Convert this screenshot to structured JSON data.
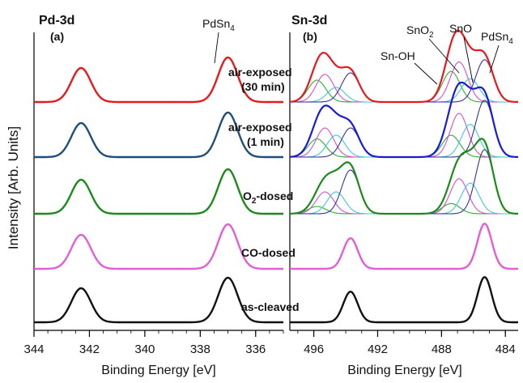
{
  "figure": {
    "y_axis_label": "Intensity [Arb. Units]"
  },
  "panels": [
    {
      "id": "a",
      "title": "Pd-3d",
      "sublabel": "(a)",
      "xlabel": "Binding Energy [eV]",
      "xlim": [
        344,
        335
      ],
      "major_ticks": [
        344,
        342,
        340,
        338,
        336
      ],
      "peak_annotations": [
        "PdSn4"
      ],
      "spectra_top_to_bottom": [
        "air-exposed (30 min)",
        "air-exposed (1 min)",
        "O2-dosed",
        "CO-dosed",
        "as-cleaved"
      ]
    },
    {
      "id": "b",
      "title": "Sn-3d",
      "sublabel": "(b)",
      "xlabel": "Binding Energy [eV]",
      "xlim": [
        497.5,
        483.2
      ],
      "major_ticks": [
        496,
        492,
        488,
        484
      ],
      "peak_annotations": [
        "Sn-OH",
        "SnO2",
        "SnO",
        "PdSn4"
      ]
    }
  ],
  "spectrum_labels": [
    {
      "line1": "air-exposed",
      "line2": "(30 min)"
    },
    {
      "line1": "air-exposed",
      "line2": "(1 min)"
    },
    {
      "line1": "O",
      "sub": "2",
      "line2": "-dosed"
    },
    {
      "line1": "CO-dosed",
      "line2": ""
    },
    {
      "line1": "as-cleaved",
      "line2": ""
    }
  ],
  "chart_data": [
    {
      "type": "line",
      "panel": "a",
      "title": "Pd-3d",
      "xlabel": "Binding Energy [eV]",
      "ylabel": "Intensity [Arb. Units]",
      "xlim": [
        344,
        335
      ],
      "peaks_eV": [
        342.3,
        337.0
      ],
      "series": [
        {
          "name": "air-exposed (30 min)",
          "color": "#e41a1c",
          "peak_heights": [
            0.42,
            0.55
          ]
        },
        {
          "name": "air-exposed (1 min)",
          "color": "#1f4e79",
          "peak_heights": [
            0.42,
            0.55
          ]
        },
        {
          "name": "O2-dosed",
          "color": "#1a8a1a",
          "peak_heights": [
            0.42,
            0.55
          ]
        },
        {
          "name": "CO-dosed",
          "color": "#e15ed6",
          "peak_heights": [
            0.42,
            0.55
          ]
        },
        {
          "name": "as-cleaved",
          "color": "#111111",
          "peak_heights": [
            0.42,
            0.55
          ]
        }
      ]
    },
    {
      "type": "line",
      "panel": "b",
      "title": "Sn-3d",
      "xlabel": "Binding Energy [eV]",
      "ylabel": "Intensity [Arb. Units]",
      "xlim": [
        497.5,
        483.2
      ],
      "component_colors": {
        "Sn-OH": "#2fae2f",
        "SnO2": "#d24fd2",
        "SnO": "#3fc7d9",
        "PdSn4": "#333399"
      },
      "series": [
        {
          "name": "air-exposed (30 min)",
          "color": "#e41a1c",
          "components": [
            {
              "name": "Sn-OH",
              "centers_eV": [
                495.8,
                487.4
              ],
              "heights": [
                0.3,
                0.42
              ]
            },
            {
              "name": "SnO2",
              "centers_eV": [
                495.3,
                486.9
              ],
              "heights": [
                0.38,
                0.55
              ]
            },
            {
              "name": "SnO",
              "centers_eV": [
                494.6,
                486.2
              ],
              "heights": [
                0.2,
                0.32
              ]
            },
            {
              "name": "PdSn4",
              "centers_eV": [
                493.7,
                485.3
              ],
              "heights": [
                0.4,
                0.58
              ]
            }
          ]
        },
        {
          "name": "air-exposed (1 min)",
          "color": "#1a1ad6",
          "components": [
            {
              "name": "Sn-OH",
              "centers_eV": [
                495.8,
                487.4
              ],
              "heights": [
                0.25,
                0.3
              ]
            },
            {
              "name": "SnO2",
              "centers_eV": [
                495.3,
                486.9
              ],
              "heights": [
                0.4,
                0.6
              ]
            },
            {
              "name": "SnO",
              "centers_eV": [
                494.6,
                486.2
              ],
              "heights": [
                0.3,
                0.45
              ]
            },
            {
              "name": "PdSn4",
              "centers_eV": [
                493.7,
                485.3
              ],
              "heights": [
                0.4,
                0.78
              ]
            }
          ]
        },
        {
          "name": "O2-dosed",
          "color": "#1a8a1a",
          "components": [
            {
              "name": "Sn-OH",
              "centers_eV": [
                495.8,
                487.4
              ],
              "heights": [
                0.1,
                0.14
              ]
            },
            {
              "name": "SnO2",
              "centers_eV": [
                495.3,
                486.9
              ],
              "heights": [
                0.3,
                0.48
              ]
            },
            {
              "name": "SnO",
              "centers_eV": [
                494.6,
                486.2
              ],
              "heights": [
                0.3,
                0.42
              ]
            },
            {
              "name": "PdSn4",
              "centers_eV": [
                493.7,
                485.3
              ],
              "heights": [
                0.6,
                0.88
              ]
            }
          ]
        },
        {
          "name": "CO-dosed",
          "color": "#e15ed6",
          "components": [
            {
              "name": "PdSn4",
              "centers_eV": [
                493.7,
                485.3
              ],
              "heights": [
                0.42,
                0.62
              ]
            }
          ]
        },
        {
          "name": "as-cleaved",
          "color": "#111111",
          "components": [
            {
              "name": "PdSn4",
              "centers_eV": [
                493.7,
                485.3
              ],
              "heights": [
                0.42,
                0.62
              ]
            }
          ]
        }
      ]
    }
  ]
}
